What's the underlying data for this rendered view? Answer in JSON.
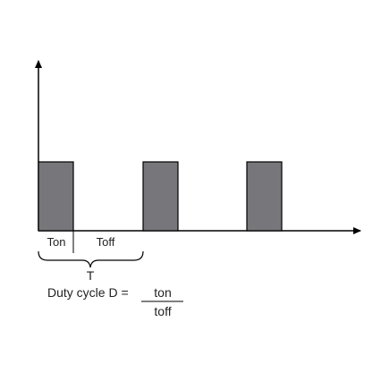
{
  "diagram": {
    "pulse_color": "#76767b",
    "stroke_color": "#000000",
    "pulses": [
      {
        "name": "pulse-1"
      },
      {
        "name": "pulse-2"
      },
      {
        "name": "pulse-3"
      }
    ],
    "labels": {
      "ton": "Ton",
      "toff": "Toff",
      "period": "T"
    },
    "formula": {
      "prefix": "Duty cycle D =",
      "numerator": "ton",
      "denominator": "toff"
    }
  }
}
